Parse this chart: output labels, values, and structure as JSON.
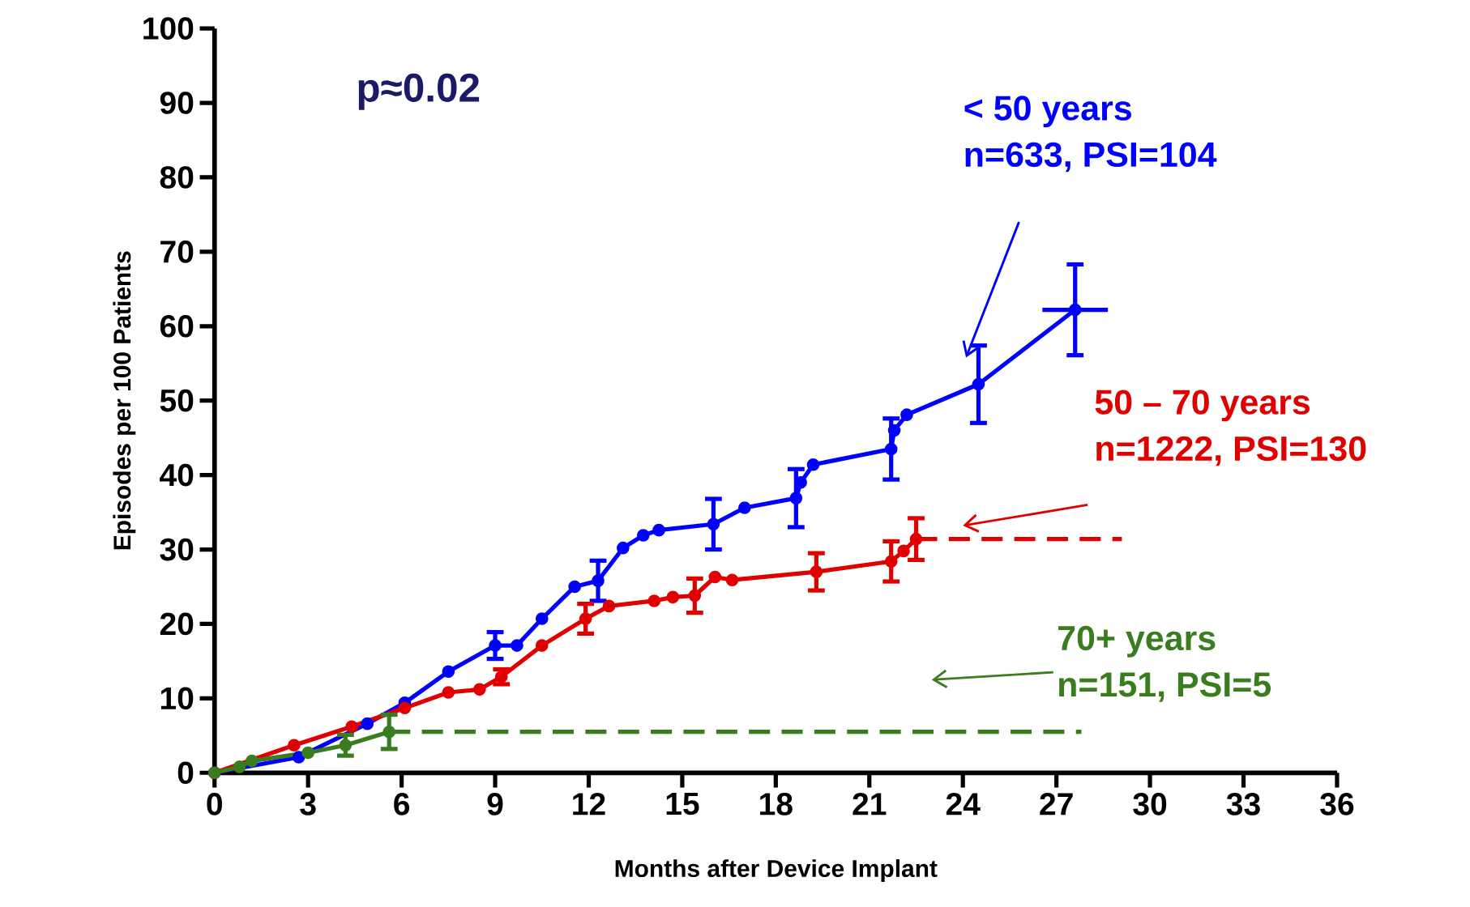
{
  "chart_data": {
    "type": "line",
    "xlabel": "Months after Device Implant",
    "ylabel": "Episodes per 100 Patients",
    "xlim": [
      0,
      36
    ],
    "xticks": [
      0,
      3,
      6,
      9,
      12,
      15,
      18,
      21,
      24,
      27,
      30,
      33,
      36
    ],
    "ylim": [
      0,
      100
    ],
    "yticks": [
      0,
      10,
      20,
      30,
      40,
      50,
      60,
      70,
      80,
      90,
      100
    ],
    "marker": "circle",
    "annotations": [
      "p≈0.02",
      "n=633, PSI=104",
      "n=1222, PSI=130",
      "n=151, PSI=5"
    ],
    "series": [
      {
        "name": "< 50 years",
        "color": "#0000ff",
        "line_style": "solid",
        "x": [
          0,
          2.7,
          4.9,
          6.1,
          7.5,
          9.0,
          9.7,
          10.5,
          11.55,
          12.3,
          13.1,
          13.75,
          14.25,
          16.0,
          17.0,
          18.65,
          18.8,
          19.2,
          21.7,
          21.8,
          22.2,
          24.5,
          27.6
        ],
        "values": [
          0,
          2.1,
          6.6,
          9.4,
          13.6,
          17.1,
          17.1,
          20.7,
          25,
          25.8,
          30.2,
          31.9,
          32.6,
          33.4,
          35.6,
          36.9,
          39,
          41.4,
          43.5,
          46,
          48.1,
          52.2,
          62.2
        ],
        "errors": [
          null,
          null,
          null,
          null,
          null,
          1.8,
          null,
          null,
          null,
          2.7,
          null,
          null,
          null,
          3.4,
          null,
          3.9,
          null,
          null,
          4.1,
          null,
          null,
          5.2,
          6.1
        ],
        "xerrors": [
          null,
          null,
          null,
          null,
          null,
          null,
          null,
          null,
          null,
          null,
          null,
          null,
          null,
          null,
          null,
          null,
          null,
          null,
          null,
          null,
          null,
          null,
          1.05
        ]
      },
      {
        "name": "50 – 70 years",
        "color": "#e00000",
        "line_style": "solid",
        "x": [
          0,
          2.55,
          4.4,
          6.1,
          7.5,
          8.5,
          9.2,
          10.5,
          11.9,
          12.65,
          14.1,
          14.7,
          15.4,
          16.05,
          16.6,
          19.3,
          21.7,
          22.1,
          22.5
        ],
        "values": [
          0,
          3.7,
          6.2,
          8.7,
          10.8,
          11.2,
          12.9,
          17.1,
          20.7,
          22.4,
          23.1,
          23.6,
          23.8,
          26.3,
          25.9,
          27.0,
          28.4,
          29.8,
          31.4
        ],
        "errors": [
          null,
          null,
          null,
          null,
          null,
          null,
          1.0,
          null,
          2.0,
          null,
          null,
          null,
          2.3,
          null,
          null,
          2.5,
          2.7,
          null,
          2.8
        ]
      },
      {
        "name": "70+ years",
        "color": "#3a7d1e",
        "line_style": "solid",
        "x": [
          0,
          0.8,
          1.2,
          3.0,
          4.2,
          5.6
        ],
        "values": [
          0,
          0.8,
          1.6,
          2.7,
          3.7,
          5.5
        ],
        "errors": [
          null,
          null,
          null,
          null,
          1.4,
          2.3
        ]
      },
      {
        "color": "#e00000",
        "line_style": "dashed",
        "marker": "none",
        "x": [
          22.5,
          29.1
        ],
        "values": [
          31.4,
          31.4
        ]
      },
      {
        "color": "#3a7d1e",
        "line_style": "dashed",
        "marker": "none",
        "x": [
          5.6,
          27.8
        ],
        "values": [
          5.5,
          5.5
        ]
      }
    ]
  }
}
